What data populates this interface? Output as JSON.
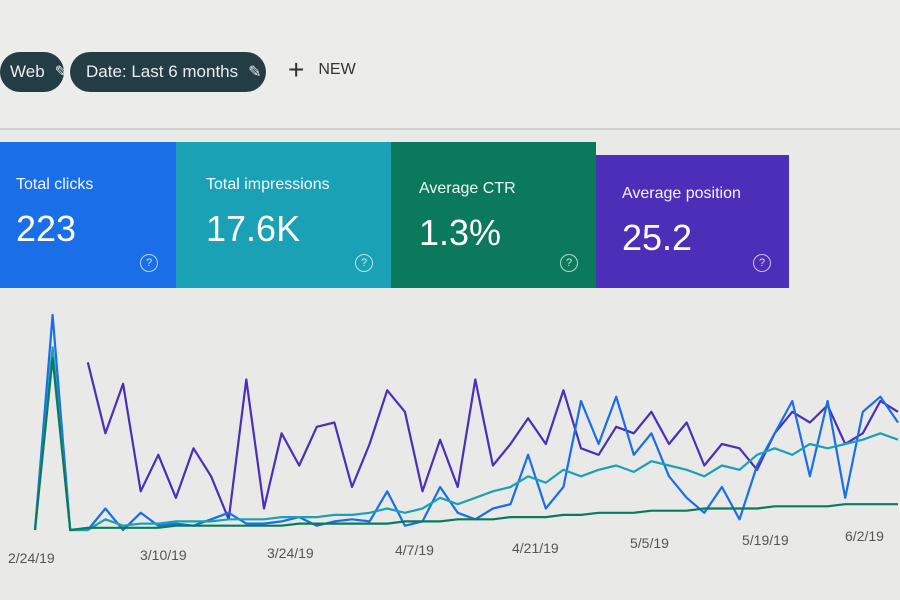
{
  "filters": [
    {
      "label": "Web",
      "icon": "pencil-icon"
    },
    {
      "label": "Date: Last 6 months",
      "icon": "pencil-icon"
    }
  ],
  "new_button": {
    "label": "NEW",
    "icon": "plus-icon"
  },
  "cards": [
    {
      "label": "Total clicks",
      "value": "223",
      "color": "#1a6ee8"
    },
    {
      "label": "Total impressions",
      "value": "17.6K",
      "color": "#1aa1b5"
    },
    {
      "label": "Average CTR",
      "value": "1.3%",
      "color": "#0b7a5c"
    },
    {
      "label": "Average position",
      "value": "25.2",
      "color": "#4b2fb8"
    }
  ],
  "help_icon": "help-circle-icon",
  "chart_data": {
    "type": "line",
    "x_tick_labels": [
      "2/24/19",
      "3/10/19",
      "3/24/19",
      "4/7/19",
      "4/21/19",
      "5/5/19",
      "5/19/19",
      "6/2/19"
    ],
    "grid": false,
    "series": [
      {
        "color": "#4b2fb8",
        "values": [
          null,
          null,
          null,
          78,
          45,
          68,
          18,
          35,
          15,
          38,
          25,
          5,
          70,
          10,
          45,
          30,
          48,
          50,
          20,
          40,
          65,
          55,
          18,
          42,
          20,
          70,
          30,
          40,
          52,
          40,
          65,
          38,
          35,
          48,
          45,
          55,
          40,
          50,
          30,
          40,
          38,
          28,
          45,
          55,
          50,
          58,
          40,
          45,
          60,
          55
        ]
      },
      {
        "color": "#1a6ee8",
        "values": [
          0,
          100,
          0,
          0,
          10,
          0,
          8,
          2,
          3,
          2,
          5,
          8,
          3,
          3,
          4,
          6,
          2,
          4,
          5,
          4,
          18,
          2,
          4,
          20,
          8,
          5,
          10,
          12,
          35,
          10,
          20,
          60,
          40,
          62,
          35,
          45,
          25,
          15,
          8,
          20,
          5,
          30,
          45,
          60,
          25,
          60,
          15,
          55,
          62,
          50
        ]
      },
      {
        "color": "#1aa1b5",
        "values": [
          0,
          85,
          0,
          0,
          5,
          2,
          3,
          3,
          4,
          4,
          4,
          5,
          5,
          5,
          6,
          6,
          6,
          7,
          7,
          8,
          10,
          8,
          10,
          15,
          12,
          15,
          18,
          20,
          25,
          22,
          28,
          25,
          28,
          30,
          27,
          32,
          30,
          28,
          25,
          30,
          28,
          35,
          38,
          35,
          40,
          38,
          40,
          42,
          45,
          42
        ]
      },
      {
        "color": "#0b7a5c",
        "values": [
          0,
          80,
          0,
          1,
          1,
          1,
          1,
          1,
          2,
          2,
          2,
          2,
          2,
          2,
          2,
          3,
          3,
          3,
          3,
          3,
          3,
          4,
          4,
          4,
          5,
          5,
          5,
          6,
          6,
          6,
          7,
          7,
          8,
          8,
          8,
          9,
          9,
          9,
          10,
          10,
          10,
          10,
          11,
          11,
          11,
          11,
          12,
          12,
          12,
          12
        ]
      }
    ]
  }
}
